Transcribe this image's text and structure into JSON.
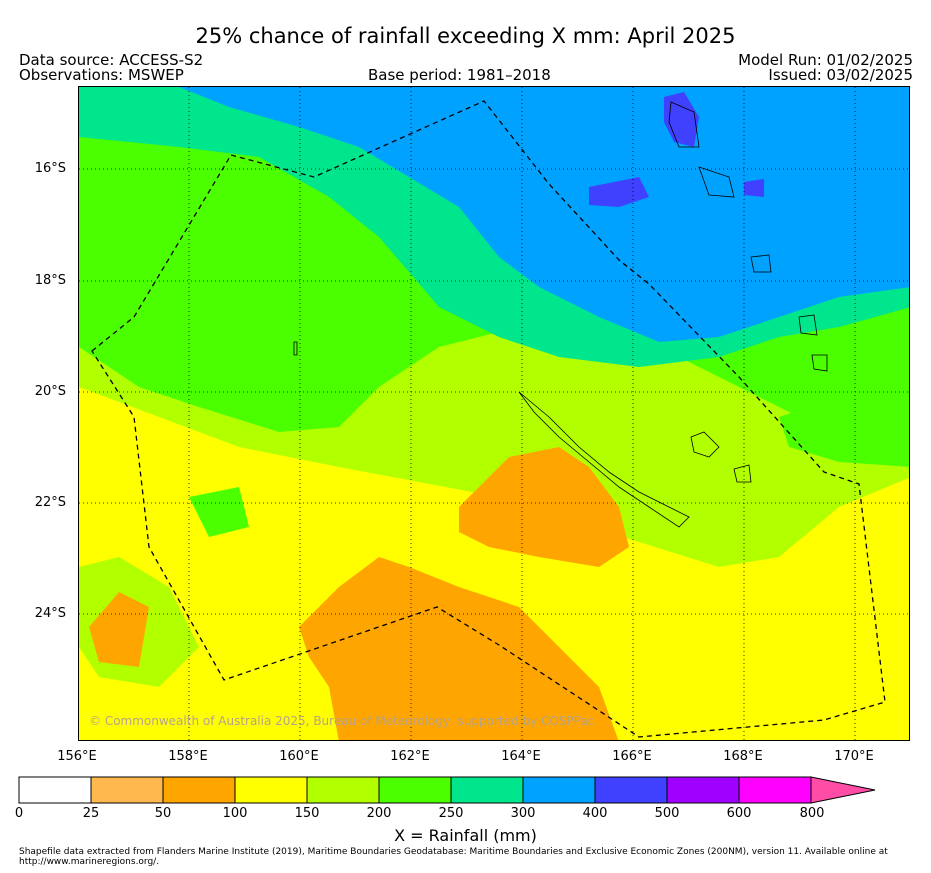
{
  "title": "25% chance of rainfall exceeding X mm: April 2025",
  "header": {
    "data_source": "Data source: ACCESS-S2",
    "observations": "Observations: MSWEP",
    "base_period": "Base period: 1981–2018",
    "model_run": "Model Run: 01/02/2025",
    "issued": "Issued: 03/02/2025"
  },
  "map": {
    "copyright": "© Commonwealth of Australia 2025, Bureau of Meteorology, supported by COSPPac",
    "lat_labels": [
      "16°S",
      "18°S",
      "20°S",
      "22°S",
      "24°S"
    ],
    "lon_labels": [
      "156°E",
      "158°E",
      "160°E",
      "162°E",
      "164°E",
      "166°E",
      "168°E",
      "170°E"
    ],
    "extent": {
      "lon_min": 156,
      "lon_max": 171,
      "lat_min": -26.6,
      "lat_max": -14.9
    }
  },
  "colorbar": {
    "title": "X = Rainfall (mm)",
    "labels": [
      "0",
      "25",
      "50",
      "100",
      "150",
      "200",
      "250",
      "300",
      "400",
      "500",
      "600",
      "800"
    ],
    "colors": [
      "#ffffff",
      "#ffb84d",
      "#ffa500",
      "#ffff00",
      "#b2ff00",
      "#4cff00",
      "#00e68c",
      "#00a2ff",
      "#4040ff",
      "#a000ff",
      "#ff00ff",
      "#ff4da6"
    ]
  },
  "footer": "Shapefile data extracted from Flanders Marine Institute (2019), Maritime Boundaries Geodatabase: Maritime Boundaries and Exclusive Economic Zones (200NM), version 11. Available online at http://www.marineregions.org/."
}
